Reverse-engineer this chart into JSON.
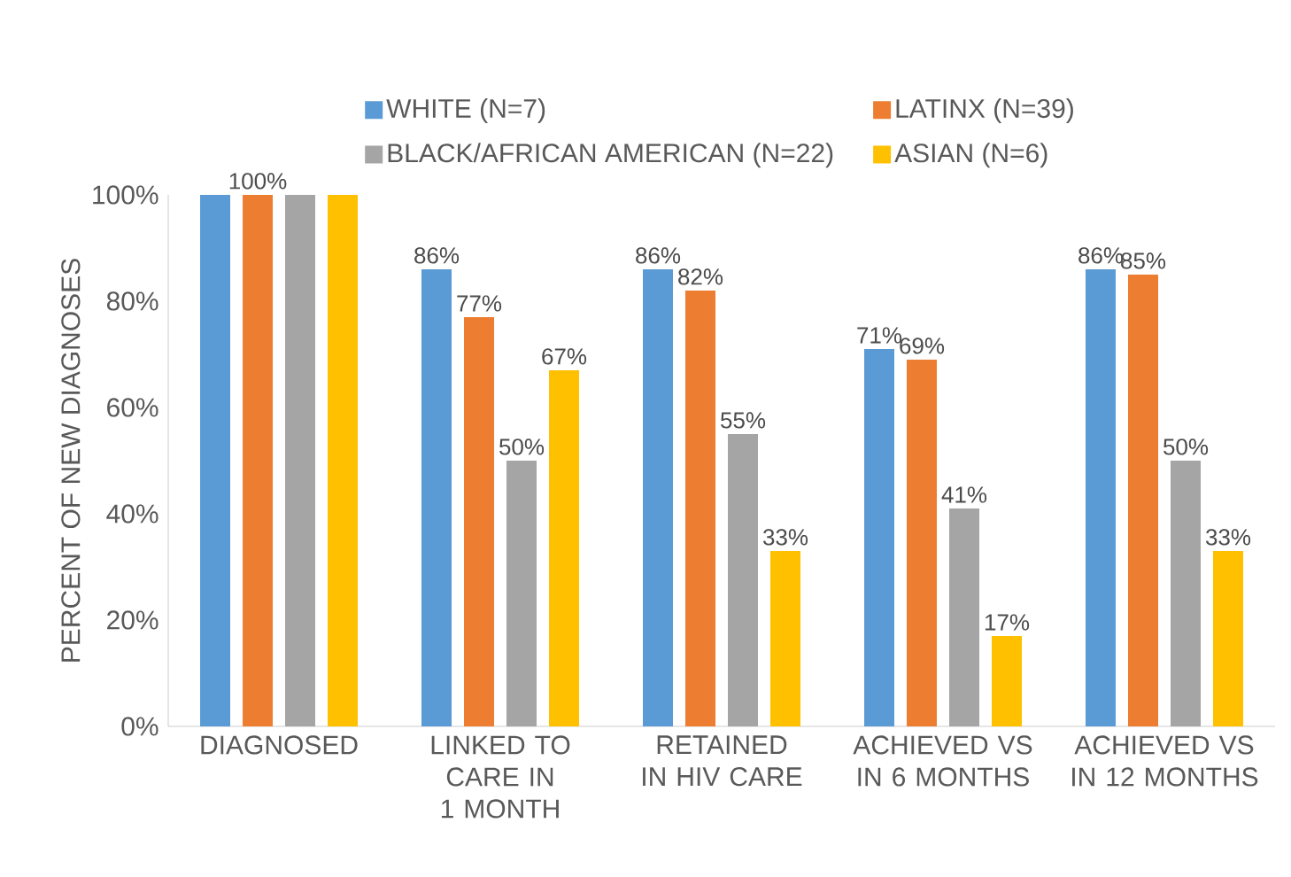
{
  "chart_data": {
    "type": "bar",
    "ylabel": "PERCENT OF NEW DIAGNOSES",
    "categories": [
      "DIAGNOSED",
      "LINKED TO CARE IN 1 MONTH",
      "RETAINED IN HIV CARE",
      "ACHIEVED VS IN 6 MONTHS",
      "ACHIEVED VS IN 12 MONTHS"
    ],
    "series": [
      {
        "name": "WHITE (N=7)",
        "color": "#5b9bd5",
        "values": [
          100,
          86,
          86,
          71,
          86
        ],
        "value_labels": [
          null,
          "86%",
          "86%",
          "71%",
          "86%"
        ]
      },
      {
        "name": "LATINX (N=39)",
        "color": "#ed7d31",
        "values": [
          100,
          77,
          82,
          69,
          85
        ],
        "value_labels": [
          "100%",
          "77%",
          "82%",
          "69%",
          "85%"
        ]
      },
      {
        "name": "BLACK/AFRICAN AMERICAN (N=22)",
        "color": "#a5a5a5",
        "values": [
          100,
          50,
          55,
          41,
          50
        ],
        "value_labels": [
          null,
          "50%",
          "55%",
          "41%",
          "50%"
        ]
      },
      {
        "name": "ASIAN (N=6)",
        "color": "#ffc000",
        "values": [
          100,
          67,
          33,
          17,
          33
        ],
        "value_labels": [
          null,
          "67%",
          "33%",
          "17%",
          "33%"
        ]
      }
    ],
    "ylim": [
      0,
      100
    ],
    "yticks": [
      {
        "value": 0,
        "label": "0%"
      },
      {
        "value": 20,
        "label": "20%"
      },
      {
        "value": 40,
        "label": "40%"
      },
      {
        "value": 60,
        "label": "60%"
      },
      {
        "value": 80,
        "label": "80%"
      },
      {
        "value": 100,
        "label": "100%"
      }
    ],
    "grid": false,
    "legend": "top"
  }
}
